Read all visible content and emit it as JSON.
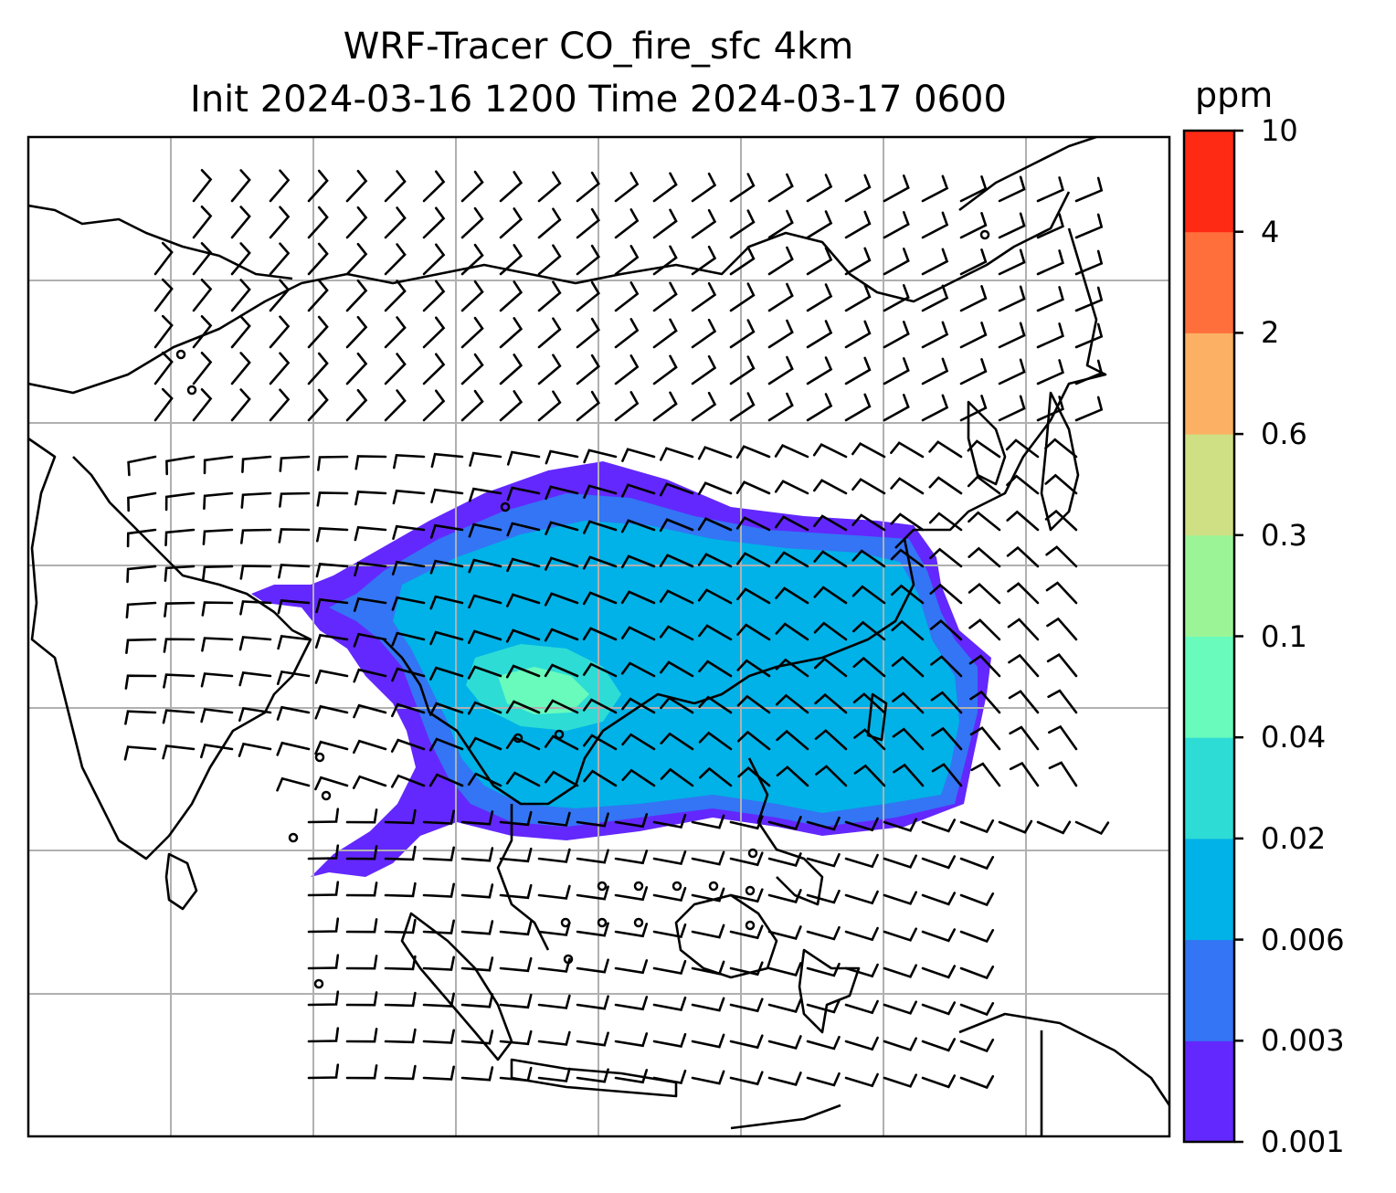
{
  "title": {
    "line1": "WRF-Tracer CO_fire_sfc 4km",
    "line2": "Init 2024-03-16 1200 Time 2024-03-17 0600"
  },
  "colorbar": {
    "unit": "ppm",
    "levels": [
      "0.001",
      "0.003",
      "0.006",
      "0.02",
      "0.04",
      "0.1",
      "0.3",
      "0.6",
      "2",
      "4",
      "10"
    ],
    "colors": [
      "#6328fd",
      "#3375f4",
      "#00b2e7",
      "#2edcd6",
      "#68fbbc",
      "#9bf597",
      "#cfe084",
      "#fbb064",
      "#fe6f3c",
      "#ff2a14"
    ]
  },
  "map": {
    "grid_color": "#b0b0b0",
    "coastline_color": "#000000",
    "wind_barb_color": "#000000",
    "plume_fill_order": [
      "0.001",
      "0.003",
      "0.006",
      "0.02",
      "0.04"
    ]
  }
}
